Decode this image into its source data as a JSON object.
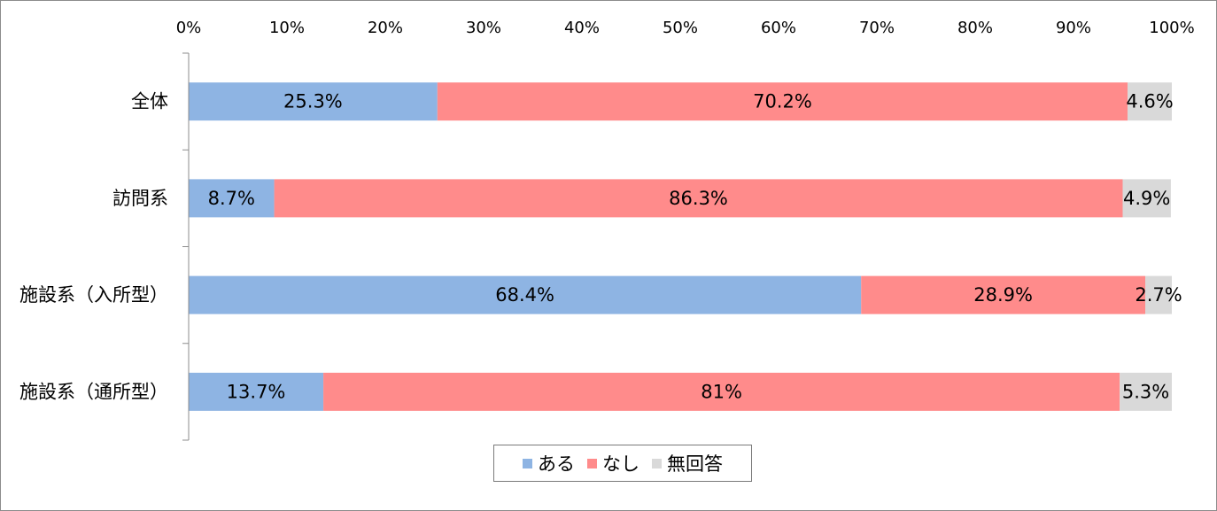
{
  "chart_data": {
    "type": "bar",
    "orientation": "horizontal",
    "stacked": "percent",
    "categories": [
      "全体",
      "訪問系",
      "施設系（入所型）",
      "施設系（通所型）"
    ],
    "series": [
      {
        "name": "ある",
        "color": "#8eb4e3",
        "values": [
          25.3,
          8.7,
          68.4,
          13.7
        ],
        "labels": [
          "25.3%",
          "8.7%",
          "68.4%",
          "13.7%"
        ]
      },
      {
        "name": "なし",
        "color": "#ff8b8b",
        "values": [
          70.2,
          86.3,
          28.9,
          81
        ],
        "labels": [
          "70.2%",
          "86.3%",
          "28.9%",
          "81%"
        ]
      },
      {
        "name": "無回答",
        "color": "#d9d9d9",
        "values": [
          4.6,
          4.9,
          2.7,
          5.3
        ],
        "labels": [
          "4.6%",
          "4.9%",
          "2.7%",
          "5.3%"
        ]
      }
    ],
    "x_ticks": [
      "0%",
      "10%",
      "20%",
      "30%",
      "40%",
      "50%",
      "60%",
      "70%",
      "80%",
      "90%",
      "100%"
    ],
    "xlim": [
      0,
      100
    ],
    "axis_position": "top",
    "grid": false,
    "legend_position": "bottom"
  }
}
